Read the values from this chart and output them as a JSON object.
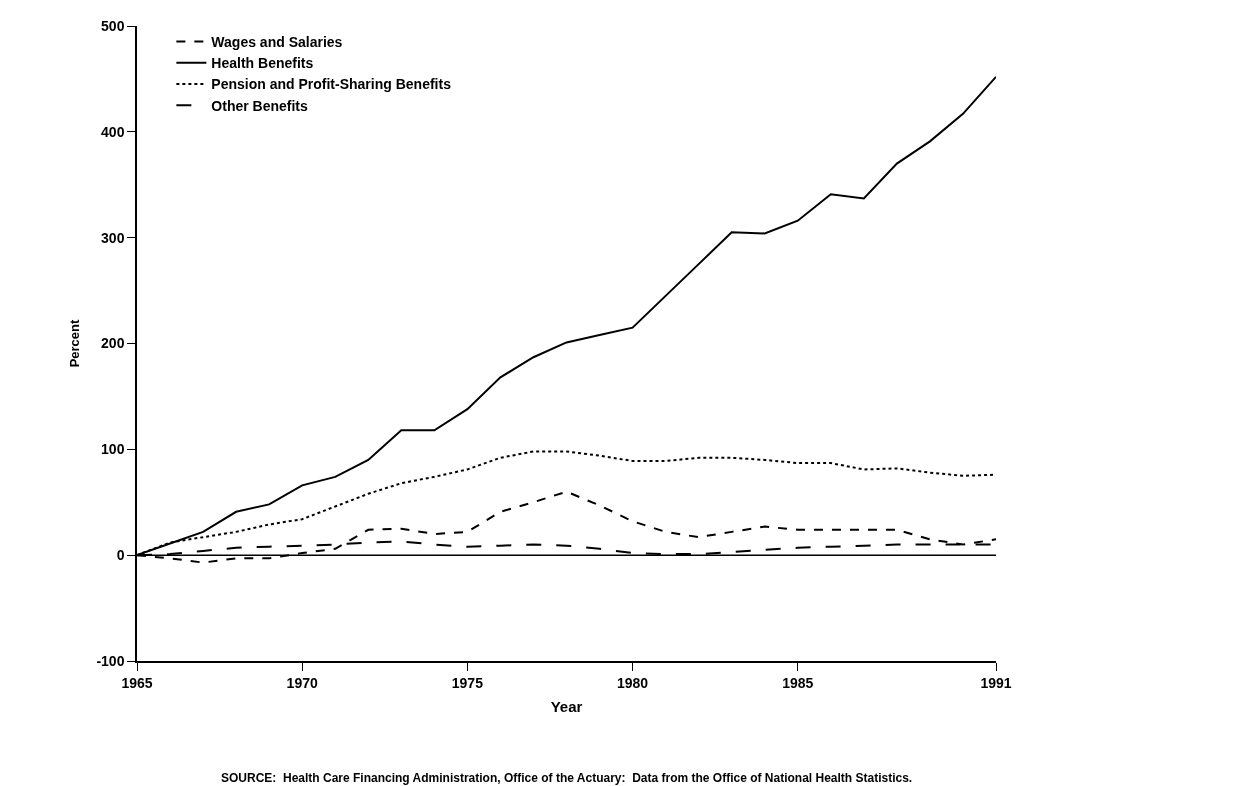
{
  "chart_data": {
    "type": "line",
    "xlabel": "Year",
    "ylabel": "Percent",
    "x": [
      1965,
      1966,
      1967,
      1968,
      1969,
      1970,
      1971,
      1972,
      1973,
      1974,
      1975,
      1976,
      1977,
      1978,
      1979,
      1980,
      1981,
      1982,
      1983,
      1984,
      1985,
      1986,
      1987,
      1988,
      1989,
      1990,
      1991
    ],
    "series": [
      {
        "name": "Wages and Salaries",
        "color": "#000000",
        "line_style": "dashed",
        "values": [
          0,
          -3,
          -7,
          -3,
          -3,
          2,
          6,
          24,
          25,
          20,
          22,
          41,
          50,
          60,
          47,
          32,
          22,
          17,
          22,
          27,
          24,
          24,
          24,
          24,
          15,
          10,
          15
        ]
      },
      {
        "name": "Health Benefits",
        "color": "#000000",
        "line_style": "solid",
        "values": [
          0,
          11,
          22,
          41,
          48,
          66,
          74,
          90,
          118,
          118,
          138,
          168,
          187,
          201,
          208,
          215,
          245,
          275,
          305,
          304,
          316,
          341,
          337,
          370,
          391,
          417,
          452
        ]
      },
      {
        "name": "Pension and Profit-Sharing Benefits",
        "color": "#000000",
        "line_style": "dotted",
        "values": [
          0,
          12,
          17,
          22,
          29,
          34,
          46,
          58,
          68,
          74,
          81,
          92,
          98,
          98,
          94,
          89,
          89,
          92,
          92,
          90,
          87,
          87,
          81,
          82,
          78,
          75,
          76
        ]
      },
      {
        "name": "Other Benefits",
        "color": "#000000",
        "line_style": "longdash",
        "values": [
          0,
          1,
          4,
          7,
          8,
          9,
          10,
          12,
          13,
          10,
          8,
          9,
          10,
          9,
          6,
          2,
          1,
          1,
          3,
          5,
          7,
          8,
          9,
          10,
          10,
          10,
          10
        ]
      }
    ],
    "xlim": [
      1965,
      1991
    ],
    "xticks": [
      1965,
      1970,
      1975,
      1980,
      1985,
      1991
    ],
    "ylim": [
      -100,
      500
    ],
    "yticks": [
      -100,
      0,
      100,
      200,
      300,
      400,
      500
    ],
    "ref_lines": [
      {
        "axis": "y",
        "value": 0,
        "color": "#000000",
        "line_style": "solid"
      }
    ],
    "grid": false,
    "legend": "top left",
    "marker": "none",
    "annotations": [
      "SOURCE:  Health Care Financing Administration, Office of the Actuary:  Data from the Office of National Health Statistics."
    ]
  }
}
